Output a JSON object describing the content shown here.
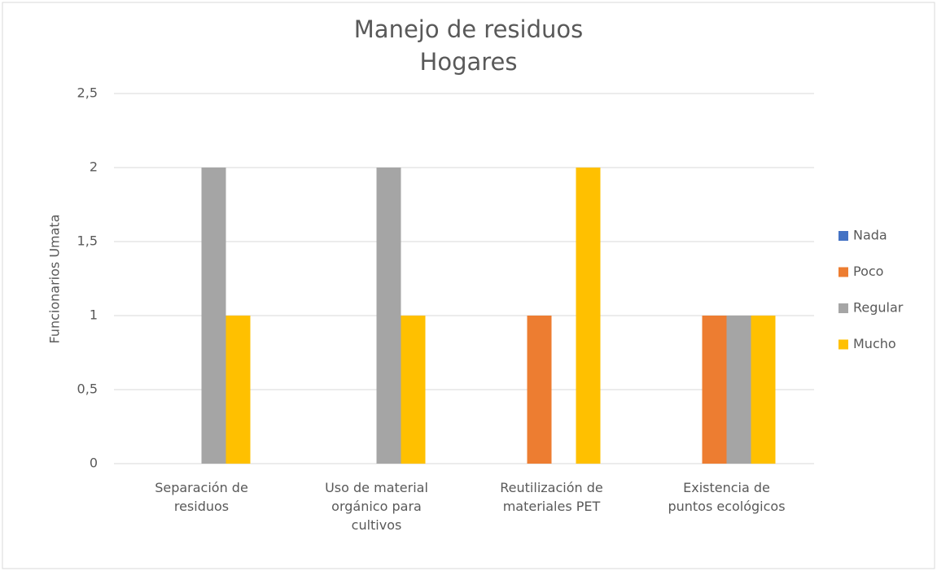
{
  "chart_data": {
    "type": "bar",
    "title": "Manejo de residuos\nHogares",
    "y_label": "Funcionarios Umata",
    "categories": [
      "Separación de residuos",
      "Uso de material orgánico para cultivos",
      "Reutilización de materiales PET",
      "Existencia de puntos ecológicos"
    ],
    "series": [
      {
        "name": "Nada",
        "color": "#4472c4",
        "values": [
          0,
          0,
          0,
          0
        ]
      },
      {
        "name": "Poco",
        "color": "#ed7d31",
        "values": [
          0,
          0,
          1,
          1
        ]
      },
      {
        "name": "Regular",
        "color": "#a5a5a5",
        "values": [
          2,
          2,
          0,
          1
        ]
      },
      {
        "name": "Mucho",
        "color": "#ffc000",
        "values": [
          1,
          1,
          2,
          1
        ]
      }
    ],
    "ylim": [
      0,
      2.5
    ],
    "yticks": [
      0,
      {
        "value": 0.5,
        "label": "0,5"
      },
      1,
      {
        "value": 1.5,
        "label": "1,5"
      },
      2,
      {
        "value": 2.5,
        "label": "2,5"
      }
    ],
    "grid": true,
    "legend": "right"
  }
}
